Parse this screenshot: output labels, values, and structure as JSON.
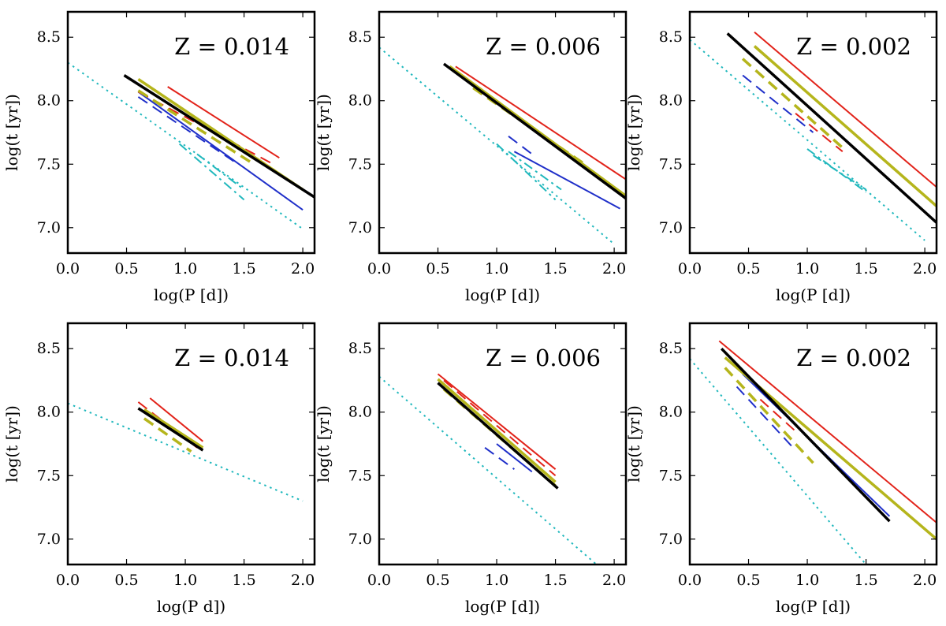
{
  "figure": {
    "colors": {
      "frame": "#000000",
      "background": "#ffffff"
    }
  },
  "styles": {
    "red": {
      "color": "#e2231a",
      "width": 2
    },
    "yellow": {
      "color": "#b5b51c",
      "width": 3.5
    },
    "blue": {
      "color": "#1f2fc9",
      "width": 2
    },
    "black": {
      "color": "#000000",
      "width": 3.5
    },
    "cyan": {
      "color": "#21b8bd",
      "width": 2
    }
  },
  "chart_data": [
    {
      "type": "line",
      "position": "top-left",
      "annotation": "Z = 0.014",
      "xlabel": "log(P [d])",
      "ylabel": "log(t [yr])",
      "xlim": [
        0.0,
        2.1
      ],
      "ylim": [
        6.8,
        8.7
      ],
      "xticks": [
        "0.0",
        "0.5",
        "1.0",
        "1.5",
        "2.0"
      ],
      "yticks": [
        "7.0",
        "7.5",
        "8.0",
        "8.5"
      ],
      "grid": false,
      "series": [
        {
          "style": "cyan",
          "dash": "dotted",
          "points": [
            [
              0.0,
              8.3
            ],
            [
              2.0,
              6.99
            ]
          ]
        },
        {
          "style": "cyan",
          "dash": "dashdot",
          "points": [
            [
              0.95,
              7.66
            ],
            [
              1.5,
              7.22
            ]
          ]
        },
        {
          "style": "cyan",
          "dash": "dashdot",
          "points": [
            [
              1.1,
              7.58
            ],
            [
              1.5,
              7.3
            ]
          ]
        },
        {
          "style": "blue",
          "dash": "dashed",
          "points": [
            [
              0.6,
              8.03
            ],
            [
              1.45,
              7.5
            ]
          ]
        },
        {
          "style": "blue",
          "dash": "solid",
          "points": [
            [
              0.6,
              8.07
            ],
            [
              2.0,
              7.14
            ]
          ]
        },
        {
          "style": "red",
          "dash": "dashed",
          "points": [
            [
              0.6,
              8.07
            ],
            [
              1.75,
              7.5
            ]
          ]
        },
        {
          "style": "red",
          "dash": "solid",
          "points": [
            [
              0.85,
              8.11
            ],
            [
              1.8,
              7.55
            ]
          ]
        },
        {
          "style": "yellow",
          "dash": "dashed",
          "points": [
            [
              0.6,
              8.08
            ],
            [
              1.55,
              7.52
            ]
          ]
        },
        {
          "style": "yellow",
          "dash": "solid",
          "points": [
            [
              0.6,
              8.17
            ],
            [
              2.0,
              7.3
            ]
          ]
        },
        {
          "style": "black",
          "dash": "solid",
          "points": [
            [
              0.48,
              8.2
            ],
            [
              2.1,
              7.24
            ]
          ]
        }
      ]
    },
    {
      "type": "line",
      "position": "top-middle",
      "annotation": "Z = 0.006",
      "xlabel": "log(P [d])",
      "ylabel": "log(t [yr])",
      "xlim": [
        0.0,
        2.1
      ],
      "ylim": [
        6.8,
        8.7
      ],
      "xticks": [
        "0.0",
        "0.5",
        "1.0",
        "1.5",
        "2.0"
      ],
      "yticks": [
        "7.0",
        "7.5",
        "8.0",
        "8.5"
      ],
      "grid": false,
      "series": [
        {
          "style": "cyan",
          "dash": "dotted",
          "points": [
            [
              0.0,
              8.42
            ],
            [
              2.0,
              6.87
            ]
          ]
        },
        {
          "style": "cyan",
          "dash": "dashdot",
          "points": [
            [
              1.0,
              7.66
            ],
            [
              1.5,
              7.22
            ]
          ]
        },
        {
          "style": "cyan",
          "dash": "dashdot",
          "points": [
            [
              1.1,
              7.6
            ],
            [
              1.55,
              7.3
            ]
          ]
        },
        {
          "style": "blue",
          "dash": "dashed",
          "points": [
            [
              1.1,
              7.72
            ],
            [
              1.3,
              7.58
            ]
          ]
        },
        {
          "style": "blue",
          "dash": "solid",
          "points": [
            [
              1.15,
              7.6
            ],
            [
              2.05,
              7.15
            ]
          ]
        },
        {
          "style": "red",
          "dash": "dashed",
          "points": [
            [
              0.9,
              8.05
            ],
            [
              1.5,
              7.65
            ]
          ]
        },
        {
          "style": "red",
          "dash": "solid",
          "points": [
            [
              0.65,
              8.27
            ],
            [
              2.1,
              7.38
            ]
          ]
        },
        {
          "style": "yellow",
          "dash": "dashed",
          "points": [
            [
              0.8,
              8.1
            ],
            [
              1.75,
              7.5
            ]
          ]
        },
        {
          "style": "yellow",
          "dash": "solid",
          "points": [
            [
              0.6,
              8.27
            ],
            [
              2.1,
              7.25
            ]
          ]
        },
        {
          "style": "black",
          "dash": "solid",
          "points": [
            [
              0.55,
              8.29
            ],
            [
              2.1,
              7.23
            ]
          ]
        }
      ]
    },
    {
      "type": "line",
      "position": "top-right",
      "annotation": "Z = 0.002",
      "xlabel": "log(P [d])",
      "ylabel": "log(t [yr])",
      "xlim": [
        0.0,
        2.1
      ],
      "ylim": [
        6.8,
        8.7
      ],
      "xticks": [
        "0.0",
        "0.5",
        "1.0",
        "1.5",
        "2.0"
      ],
      "yticks": [
        "7.0",
        "7.5",
        "8.0",
        "8.5"
      ],
      "grid": false,
      "series": [
        {
          "style": "cyan",
          "dash": "dotted",
          "points": [
            [
              0.0,
              8.48
            ],
            [
              2.0,
              6.9
            ]
          ]
        },
        {
          "style": "cyan",
          "dash": "dashdot",
          "points": [
            [
              1.0,
              7.62
            ],
            [
              1.5,
              7.28
            ]
          ]
        },
        {
          "style": "cyan",
          "dash": "dashdot",
          "points": [
            [
              1.05,
              7.57
            ],
            [
              1.5,
              7.3
            ]
          ]
        },
        {
          "style": "blue",
          "dash": "dashed",
          "points": [
            [
              0.45,
              8.2
            ],
            [
              1.05,
              7.75
            ]
          ]
        },
        {
          "style": "red",
          "dash": "dashed",
          "points": [
            [
              0.9,
              7.9
            ],
            [
              1.3,
              7.6
            ]
          ]
        },
        {
          "style": "red",
          "dash": "solid",
          "points": [
            [
              0.55,
              8.54
            ],
            [
              2.1,
              7.32
            ]
          ]
        },
        {
          "style": "yellow",
          "dash": "dashed",
          "points": [
            [
              0.45,
              8.33
            ],
            [
              1.3,
              7.63
            ]
          ]
        },
        {
          "style": "yellow",
          "dash": "solid",
          "points": [
            [
              0.55,
              8.43
            ],
            [
              2.1,
              7.17
            ]
          ]
        },
        {
          "style": "black",
          "dash": "solid",
          "points": [
            [
              0.32,
              8.53
            ],
            [
              2.1,
              7.04
            ]
          ]
        }
      ]
    },
    {
      "type": "line",
      "position": "bottom-left",
      "annotation": "Z = 0.014",
      "xlabel": "log(P  d])",
      "ylabel": "log(t [yr])",
      "xlim": [
        0.0,
        2.1
      ],
      "ylim": [
        6.8,
        8.7
      ],
      "xticks": [
        "0.0",
        "0.5",
        "1.0",
        "1.5",
        "2.0"
      ],
      "yticks": [
        "7.0",
        "7.5",
        "8.0",
        "8.5"
      ],
      "grid": false,
      "series": [
        {
          "style": "cyan",
          "dash": "dotted",
          "points": [
            [
              0.0,
              8.07
            ],
            [
              2.0,
              7.3
            ]
          ]
        },
        {
          "style": "red",
          "dash": "dashed",
          "points": [
            [
              0.6,
              8.08
            ],
            [
              1.1,
              7.72
            ]
          ]
        },
        {
          "style": "red",
          "dash": "solid",
          "points": [
            [
              0.7,
              8.11
            ],
            [
              1.15,
              7.77
            ]
          ]
        },
        {
          "style": "yellow",
          "dash": "dashed",
          "points": [
            [
              0.65,
              7.95
            ],
            [
              1.05,
              7.69
            ]
          ]
        },
        {
          "style": "yellow",
          "dash": "solid",
          "points": [
            [
              0.65,
              8.02
            ],
            [
              1.15,
              7.72
            ]
          ]
        },
        {
          "style": "black",
          "dash": "solid",
          "points": [
            [
              0.6,
              8.03
            ],
            [
              1.15,
              7.7
            ]
          ]
        }
      ]
    },
    {
      "type": "line",
      "position": "bottom-middle",
      "annotation": "Z = 0.006",
      "xlabel": "log(P [d])",
      "ylabel": "log(t [yr])",
      "xlim": [
        0.0,
        2.1
      ],
      "ylim": [
        6.8,
        8.7
      ],
      "xticks": [
        "0.0",
        "0.5",
        "1.0",
        "1.5",
        "2.0"
      ],
      "yticks": [
        "7.0",
        "7.5",
        "8.0",
        "8.5"
      ],
      "grid": false,
      "series": [
        {
          "style": "cyan",
          "dash": "dotted",
          "points": [
            [
              0.0,
              8.28
            ],
            [
              1.85,
              6.8
            ]
          ]
        },
        {
          "style": "blue",
          "dash": "dashed",
          "points": [
            [
              0.9,
              7.72
            ],
            [
              1.15,
              7.55
            ]
          ]
        },
        {
          "style": "blue",
          "dash": "solid",
          "points": [
            [
              1.0,
              7.75
            ],
            [
              1.3,
              7.53
            ]
          ]
        },
        {
          "style": "red",
          "dash": "dashed",
          "points": [
            [
              0.55,
              8.25
            ],
            [
              1.5,
              7.5
            ]
          ]
        },
        {
          "style": "red",
          "dash": "solid",
          "points": [
            [
              0.5,
              8.3
            ],
            [
              1.5,
              7.55
            ]
          ]
        },
        {
          "style": "yellow",
          "dash": "dashed",
          "points": [
            [
              0.55,
              8.18
            ],
            [
              1.5,
              7.42
            ]
          ]
        },
        {
          "style": "yellow",
          "dash": "solid",
          "points": [
            [
              0.5,
              8.26
            ],
            [
              1.5,
              7.45
            ]
          ]
        },
        {
          "style": "black",
          "dash": "solid",
          "points": [
            [
              0.5,
              8.23
            ],
            [
              1.52,
              7.4
            ]
          ]
        }
      ]
    },
    {
      "type": "line",
      "position": "bottom-right",
      "annotation": "Z = 0.002",
      "xlabel": "log(P [d])",
      "ylabel": "log(t [yr])",
      "xlim": [
        0.0,
        2.1
      ],
      "ylim": [
        6.8,
        8.7
      ],
      "xticks": [
        "0.0",
        "0.5",
        "1.0",
        "1.5",
        "2.0"
      ],
      "yticks": [
        "7.0",
        "7.5",
        "8.0",
        "8.5"
      ],
      "grid": false,
      "series": [
        {
          "style": "cyan",
          "dash": "dotted",
          "points": [
            [
              0.0,
              8.42
            ],
            [
              1.5,
              6.8
            ]
          ]
        },
        {
          "style": "blue",
          "dash": "dashed",
          "points": [
            [
              0.4,
              8.2
            ],
            [
              0.9,
              7.7
            ]
          ]
        },
        {
          "style": "blue",
          "dash": "solid",
          "points": [
            [
              0.45,
              8.3
            ],
            [
              1.7,
              7.18
            ]
          ]
        },
        {
          "style": "red",
          "dash": "dashed",
          "points": [
            [
              0.6,
              8.1
            ],
            [
              0.9,
              7.85
            ]
          ]
        },
        {
          "style": "red",
          "dash": "solid",
          "points": [
            [
              0.25,
              8.56
            ],
            [
              2.1,
              7.13
            ]
          ]
        },
        {
          "style": "yellow",
          "dash": "dashed",
          "points": [
            [
              0.3,
              8.35
            ],
            [
              1.05,
              7.6
            ]
          ]
        },
        {
          "style": "yellow",
          "dash": "solid",
          "points": [
            [
              0.3,
              8.43
            ],
            [
              2.1,
              7.0
            ]
          ]
        },
        {
          "style": "black",
          "dash": "solid",
          "points": [
            [
              0.27,
              8.5
            ],
            [
              1.7,
              7.14
            ]
          ]
        }
      ]
    }
  ]
}
